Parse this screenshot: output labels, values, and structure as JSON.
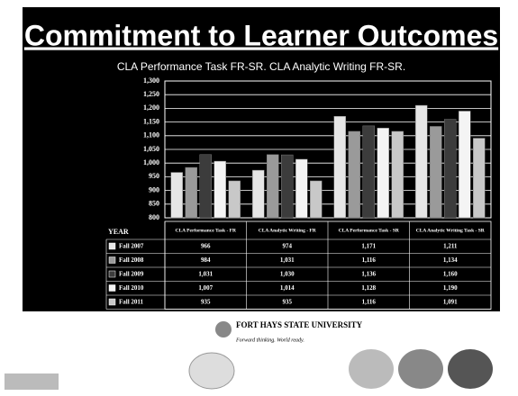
{
  "title": "Commitment to Learner Outcomes",
  "footer": {
    "logo_name": "FORT HAYS STATE UNIVERSITY",
    "logo_tagline": "Forward thinking. World ready."
  },
  "chart_data": {
    "type": "bar",
    "title": "CLA Performance Task FR-SR.  CLA Analytic Writing FR-SR.",
    "table_header": "YEAR",
    "categories": [
      "CLA Performance Task - FR",
      "CLA Analytic Writing - FR",
      "CLA Performance Task - SR",
      "CLA Analytic Writing Task - SR"
    ],
    "series": [
      {
        "name": "Fall 2007",
        "color": "#e6e6e6",
        "values": [
          966,
          974,
          1171,
          1211
        ],
        "value_labels": [
          "966",
          "974",
          "1,171",
          "1,211"
        ]
      },
      {
        "name": "Fall 2008",
        "color": "#9a9a9a",
        "values": [
          984,
          1031,
          1116,
          1134
        ],
        "value_labels": [
          "984",
          "1,031",
          "1,116",
          "1,134"
        ]
      },
      {
        "name": "Fall 2009",
        "color": "#3c3c3c",
        "values": [
          1031,
          1030,
          1136,
          1160
        ],
        "value_labels": [
          "1,031",
          "1,030",
          "1,136",
          "1,160"
        ]
      },
      {
        "name": "Fall 2010",
        "color": "#f4f4f4",
        "values": [
          1007,
          1014,
          1128,
          1190
        ],
        "value_labels": [
          "1,007",
          "1,014",
          "1,128",
          "1,190"
        ]
      },
      {
        "name": "Fall 2011",
        "color": "#c8c8c8",
        "values": [
          935,
          935,
          1116,
          1091
        ],
        "value_labels": [
          "935",
          "935",
          "1,116",
          "1,091"
        ]
      }
    ],
    "ylim": [
      800,
      1300
    ],
    "yticks": [
      800,
      850,
      900,
      950,
      {
        "value": 1000,
        "label": "1,000"
      },
      {
        "value": 1050,
        "label": "1,050"
      },
      {
        "value": 1100,
        "label": "1,100"
      },
      {
        "value": 1150,
        "label": "1,150"
      },
      {
        "value": 1200,
        "label": "1,200"
      },
      {
        "value": 1250,
        "label": "1,250"
      },
      {
        "value": 1300,
        "label": "1,300"
      }
    ],
    "grid": true
  }
}
